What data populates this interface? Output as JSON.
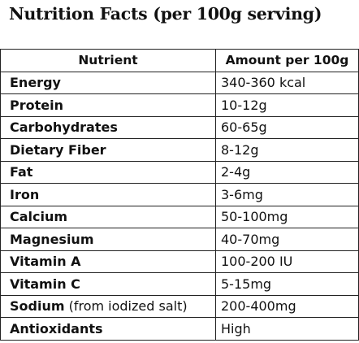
{
  "title": "Nutrition Facts (per 100g serving)",
  "table": {
    "headers": [
      "Nutrient",
      "Amount per 100g"
    ],
    "rows": [
      {
        "nutrient": "Energy",
        "note": "",
        "amount": "340-360 kcal"
      },
      {
        "nutrient": "Protein",
        "note": "",
        "amount": "10-12g"
      },
      {
        "nutrient": "Carbohydrates",
        "note": "",
        "amount": "60-65g"
      },
      {
        "nutrient": "Dietary Fiber",
        "note": "",
        "amount": "8-12g"
      },
      {
        "nutrient": "Fat",
        "note": "",
        "amount": "2-4g"
      },
      {
        "nutrient": "Iron",
        "note": "",
        "amount": "3-6mg"
      },
      {
        "nutrient": "Calcium",
        "note": "",
        "amount": "50-100mg"
      },
      {
        "nutrient": "Magnesium",
        "note": "",
        "amount": "40-70mg"
      },
      {
        "nutrient": "Vitamin A",
        "note": "",
        "amount": "100-200 IU"
      },
      {
        "nutrient": "Vitamin C",
        "note": "",
        "amount": "5-15mg"
      },
      {
        "nutrient": "Sodium",
        "note": " (from iodized salt)",
        "amount": "200-400mg"
      },
      {
        "nutrient": "Antioxidants",
        "note": "",
        "amount": "High"
      }
    ]
  }
}
